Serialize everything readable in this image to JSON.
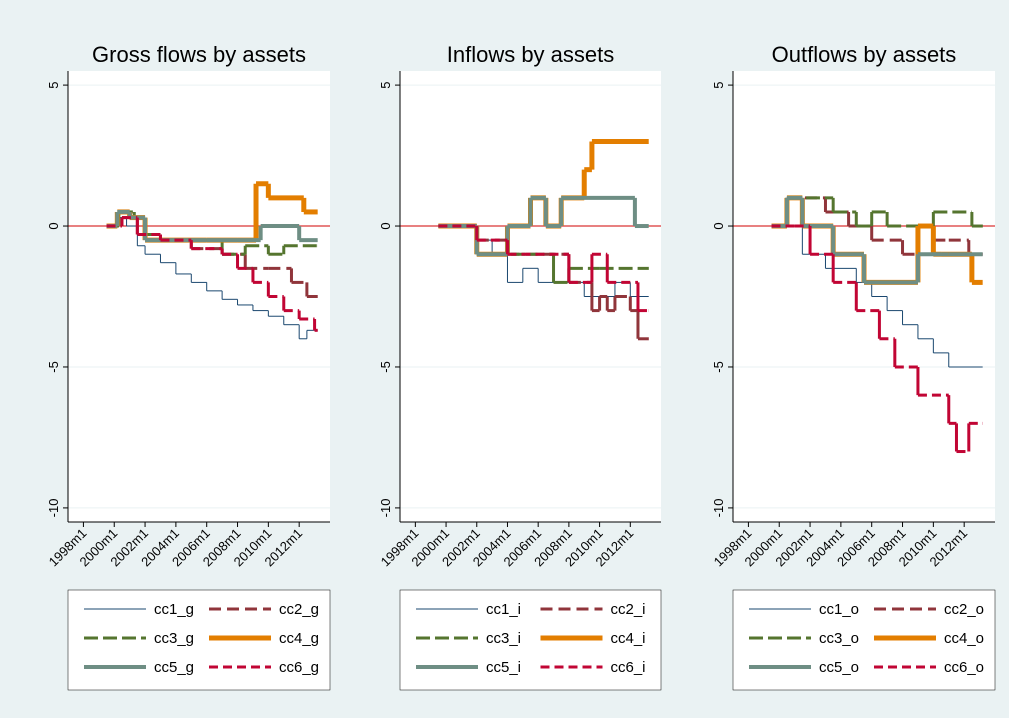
{
  "chart_data": [
    {
      "type": "line",
      "title": "Gross flows by assets",
      "step": true,
      "xlim": [
        1997,
        2014
      ],
      "xticks": [
        {
          "value": 1998,
          "label": "1998m1"
        },
        {
          "value": 2000,
          "label": "2000m1"
        },
        {
          "value": 2002,
          "label": "2002m1"
        },
        {
          "value": 2004,
          "label": "2004m1"
        },
        {
          "value": 2006,
          "label": "2006m1"
        },
        {
          "value": 2008,
          "label": "2008m1"
        },
        {
          "value": 2010,
          "label": "2010m1"
        },
        {
          "value": 2012,
          "label": "2012m1"
        }
      ],
      "ylim": [
        -10.5,
        5.5
      ],
      "yticks": [
        -10,
        -5,
        0,
        5
      ],
      "grid": true,
      "yline": 0,
      "yline_color": "#d00000",
      "series": [
        {
          "name": "cc1_g",
          "color": "#1a476f",
          "width": 1,
          "dash": "",
          "x": [
            1999.5,
            2000.3,
            2000.8,
            2001.5,
            2002,
            2003,
            2004,
            2005,
            2006,
            2007,
            2008,
            2009,
            2010,
            2011,
            2012,
            2012.5,
            2013.2
          ],
          "values": [
            0,
            0.3,
            0,
            -0.7,
            -1,
            -1.3,
            -1.7,
            -2,
            -2.3,
            -2.6,
            -2.8,
            -3,
            -3.2,
            -3.5,
            -4,
            -3.7,
            -3.7
          ]
        },
        {
          "name": "cc2_g",
          "color": "#90353b",
          "width": 3,
          "dash": "12 6",
          "x": [
            1999.5,
            2000.5,
            2001.5,
            2003,
            2005,
            2007,
            2008.5,
            2010,
            2011.5,
            2012.5,
            2013.2
          ],
          "values": [
            0,
            0.3,
            -0.3,
            -0.5,
            -0.8,
            -1,
            -1.5,
            -1.5,
            -2,
            -2.5,
            -2.5
          ]
        },
        {
          "name": "cc3_g",
          "color": "#55752f",
          "width": 3,
          "dash": "14 5",
          "x": [
            1999.5,
            2000.3,
            2001.3,
            2002,
            2003,
            2004.5,
            2007,
            2008.5,
            2010,
            2011,
            2013.2
          ],
          "values": [
            0,
            0.5,
            0.3,
            -0.3,
            -0.5,
            -0.5,
            -1,
            -0.7,
            -1,
            -0.7,
            -0.7
          ]
        },
        {
          "name": "cc4_g",
          "color": "#e37e00",
          "width": 5,
          "dash": "",
          "x": [
            1999.5,
            2000.2,
            2001,
            2002,
            2006,
            2008,
            2009.2,
            2010,
            2012.3,
            2013.2
          ],
          "values": [
            0,
            0.5,
            0.3,
            -0.5,
            -0.5,
            -0.5,
            1.5,
            1,
            0.5,
            0.5
          ]
        },
        {
          "name": "cc5_g",
          "color": "#6e8e84",
          "width": 4,
          "dash": "",
          "x": [
            1999.5,
            2000.2,
            2001,
            2002,
            2006,
            2009.5,
            2012,
            2013.2
          ],
          "values": [
            0,
            0.5,
            0.3,
            -0.5,
            -0.5,
            0,
            -0.5,
            -0.5
          ]
        },
        {
          "name": "cc6_g",
          "color": "#c10534",
          "width": 3,
          "dash": "9 5",
          "x": [
            1999.5,
            2000.5,
            2001.5,
            2003,
            2005,
            2007,
            2008,
            2009,
            2010,
            2011,
            2012,
            2013,
            2013.2
          ],
          "values": [
            0,
            0.3,
            -0.3,
            -0.5,
            -0.8,
            -1,
            -1.5,
            -2,
            -2.5,
            -3,
            -3.3,
            -3.7,
            -3.7
          ]
        }
      ]
    },
    {
      "type": "line",
      "title": "Inflows by assets",
      "step": true,
      "xlim": [
        1997,
        2014
      ],
      "xticks": [
        {
          "value": 1998,
          "label": "1998m1"
        },
        {
          "value": 2000,
          "label": "2000m1"
        },
        {
          "value": 2002,
          "label": "2002m1"
        },
        {
          "value": 2004,
          "label": "2004m1"
        },
        {
          "value": 2006,
          "label": "2006m1"
        },
        {
          "value": 2008,
          "label": "2008m1"
        },
        {
          "value": 2010,
          "label": "2010m1"
        },
        {
          "value": 2012,
          "label": "2012m1"
        }
      ],
      "ylim": [
        -10.5,
        5.5
      ],
      "yticks": [
        -10,
        -5,
        0,
        5
      ],
      "grid": true,
      "yline": 0,
      "yline_color": "#d00000",
      "series": [
        {
          "name": "cc1_i",
          "color": "#1a476f",
          "width": 1,
          "dash": "",
          "x": [
            1999.5,
            2002,
            2003,
            2004,
            2005,
            2006,
            2007,
            2009,
            2011,
            2012,
            2013.2
          ],
          "values": [
            0,
            -0.5,
            -1,
            -2,
            -1.5,
            -2,
            -2,
            -2.5,
            -2,
            -2.5,
            -2.5
          ]
        },
        {
          "name": "cc2_i",
          "color": "#90353b",
          "width": 3,
          "dash": "12 6",
          "x": [
            1999.5,
            2002,
            2004,
            2008,
            2009.5,
            2010,
            2010.5,
            2011,
            2012,
            2012.5,
            2013.2
          ],
          "values": [
            0,
            -0.5,
            -1,
            -2,
            -3,
            -2.5,
            -3,
            -2.5,
            -3,
            -4,
            -4
          ]
        },
        {
          "name": "cc3_i",
          "color": "#55752f",
          "width": 3,
          "dash": "14 5",
          "x": [
            1999.5,
            2002,
            2003,
            2007,
            2008,
            2010,
            2013.2
          ],
          "values": [
            0,
            -1,
            -1,
            -2,
            -1.5,
            -1.5,
            -1.5
          ]
        },
        {
          "name": "cc4_i",
          "color": "#e37e00",
          "width": 5,
          "dash": "",
          "x": [
            1999.5,
            2002,
            2004,
            2005.5,
            2006.5,
            2007.5,
            2009,
            2009.5,
            2013.2
          ],
          "values": [
            0,
            -1,
            0,
            1,
            0,
            1,
            2,
            3,
            3
          ]
        },
        {
          "name": "cc5_i",
          "color": "#6e8e84",
          "width": 4,
          "dash": "",
          "x": [
            1999.5,
            2002,
            2004,
            2005.5,
            2006.5,
            2007.5,
            2012.3,
            2013.2
          ],
          "values": [
            0,
            -1,
            0,
            1,
            0,
            1,
            0,
            0
          ]
        },
        {
          "name": "cc6_i",
          "color": "#c10534",
          "width": 3,
          "dash": "9 5",
          "x": [
            1999.5,
            2002,
            2004,
            2008,
            2009.5,
            2010.5,
            2012.5,
            2013.2
          ],
          "values": [
            0,
            -0.5,
            -1,
            -2,
            -1,
            -2,
            -3,
            -3
          ]
        }
      ]
    },
    {
      "type": "line",
      "title": "Outflows by assets",
      "step": true,
      "xlim": [
        1997,
        2014
      ],
      "xticks": [
        {
          "value": 1998,
          "label": "1998m1"
        },
        {
          "value": 2000,
          "label": "2000m1"
        },
        {
          "value": 2002,
          "label": "2002m1"
        },
        {
          "value": 2004,
          "label": "2004m1"
        },
        {
          "value": 2006,
          "label": "2006m1"
        },
        {
          "value": 2008,
          "label": "2008m1"
        },
        {
          "value": 2010,
          "label": "2010m1"
        },
        {
          "value": 2012,
          "label": "2012m1"
        }
      ],
      "ylim": [
        -10.5,
        5.5
      ],
      "yticks": [
        -10,
        -5,
        0,
        5
      ],
      "grid": true,
      "yline": 0,
      "yline_color": "#d00000",
      "series": [
        {
          "name": "cc1_o",
          "color": "#1a476f",
          "width": 1,
          "dash": "",
          "x": [
            1999.5,
            2000.5,
            2001.5,
            2003,
            2005,
            2006,
            2007,
            2008,
            2009,
            2010,
            2011,
            2013.2
          ],
          "values": [
            0,
            1,
            -1,
            -1.5,
            -2,
            -2.5,
            -3,
            -3.5,
            -4,
            -4.5,
            -5,
            -5
          ]
        },
        {
          "name": "cc2_o",
          "color": "#90353b",
          "width": 3,
          "dash": "12 6",
          "x": [
            1999.5,
            2000.5,
            2003,
            2004.5,
            2006,
            2008,
            2010,
            2011,
            2012.3,
            2013.2
          ],
          "values": [
            0,
            1,
            0.5,
            0,
            -0.5,
            -1,
            -0.5,
            -0.5,
            -1,
            -1
          ]
        },
        {
          "name": "cc3_o",
          "color": "#55752f",
          "width": 3,
          "dash": "14 5",
          "x": [
            1999.5,
            2000.5,
            2003.5,
            2005,
            2006,
            2007,
            2009,
            2010,
            2012.5,
            2013.2
          ],
          "values": [
            0,
            1,
            0.5,
            0,
            0.5,
            0,
            0,
            0.5,
            0,
            0
          ]
        },
        {
          "name": "cc4_o",
          "color": "#e37e00",
          "width": 5,
          "dash": "",
          "x": [
            1999.5,
            2000.5,
            2001.5,
            2003.5,
            2005.5,
            2009,
            2010,
            2010.5,
            2012.5,
            2013.2
          ],
          "values": [
            0,
            1,
            0,
            -1,
            -2,
            0,
            -1,
            -1,
            -2,
            -2
          ]
        },
        {
          "name": "cc5_o",
          "color": "#6e8e84",
          "width": 4,
          "dash": "",
          "x": [
            1999.5,
            2000.5,
            2001.5,
            2003.5,
            2005.5,
            2009,
            2011,
            2013.2
          ],
          "values": [
            0,
            1,
            0,
            -1,
            -2,
            -1,
            -1,
            -1
          ]
        },
        {
          "name": "cc6_o",
          "color": "#c10534",
          "width": 3,
          "dash": "9 5",
          "x": [
            1999.5,
            2001,
            2002,
            2003.5,
            2005,
            2006.5,
            2007.5,
            2009,
            2011,
            2011.5,
            2012.3,
            2013.2
          ],
          "values": [
            0,
            0,
            -1,
            -2,
            -3,
            -4,
            -5,
            -6,
            -7,
            -8,
            -7,
            -7
          ]
        }
      ]
    }
  ]
}
